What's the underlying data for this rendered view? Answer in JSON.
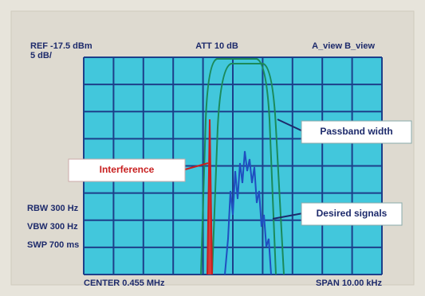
{
  "header": {
    "ref_level": "REF -17.5 dBm",
    "scale": "5 dB/",
    "attenuation": "ATT 10 dB",
    "view": "A_view B_view"
  },
  "settings": {
    "rbw": "RBW 300 Hz",
    "vbw": "VBW 300 Hz",
    "sweep": "SWP 700 ms"
  },
  "footer": {
    "center": "CENTER 0.455 MHz",
    "span": "SPAN 10.00 kHz"
  },
  "annotations": {
    "passband": "Passband width",
    "interference": "Interference",
    "desired": "Desired signals"
  }
}
